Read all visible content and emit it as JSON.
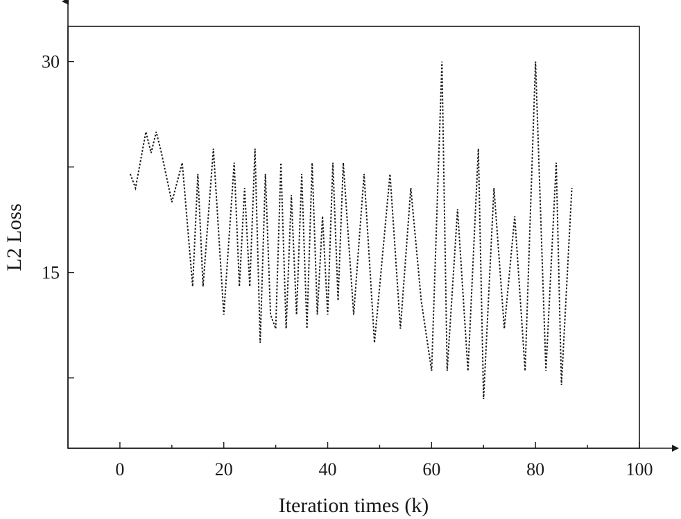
{
  "chart_data": {
    "type": "line",
    "title": "",
    "xlabel": "Iteration times (k)",
    "ylabel": "L2 Loss",
    "xlim": [
      -10,
      100
    ],
    "ylim": [
      2.5,
      32.5
    ],
    "xticks": [
      0,
      20,
      40,
      60,
      80,
      100
    ],
    "xtick_labels": [
      "0",
      "20",
      "40",
      "60",
      "80",
      "100"
    ],
    "yticks": [
      7.5,
      15,
      22.5,
      30
    ],
    "ytick_labels": [
      "",
      "15",
      "",
      "30"
    ],
    "grid": false,
    "legend": "none",
    "series": [
      {
        "x": [
          2,
          3,
          5,
          6,
          7,
          8,
          10,
          12,
          14,
          15,
          16,
          18,
          20,
          22,
          23,
          24,
          25,
          26,
          27,
          28,
          29,
          30,
          31,
          32,
          33,
          34,
          35,
          36,
          37,
          38,
          39,
          40,
          41,
          42,
          43,
          45,
          47,
          49,
          52,
          54,
          56,
          58,
          60,
          62,
          63,
          65,
          67,
          69,
          70,
          72,
          74,
          76,
          78,
          80,
          82,
          84,
          85,
          87
        ],
        "values": [
          22,
          21,
          25,
          23.5,
          25,
          23.5,
          20,
          22.8,
          14,
          22,
          14,
          23.8,
          12,
          22.8,
          14,
          21,
          14,
          23.8,
          10,
          22,
          12,
          11,
          22.8,
          11,
          20.5,
          12,
          22,
          11,
          22.8,
          12,
          19,
          12,
          22.8,
          13,
          22.8,
          12,
          22,
          10,
          22,
          11,
          21,
          13,
          8,
          30,
          8,
          19.5,
          8,
          23.8,
          6,
          21,
          11,
          19,
          8,
          30,
          8,
          22.8,
          7,
          21
        ]
      }
    ]
  }
}
